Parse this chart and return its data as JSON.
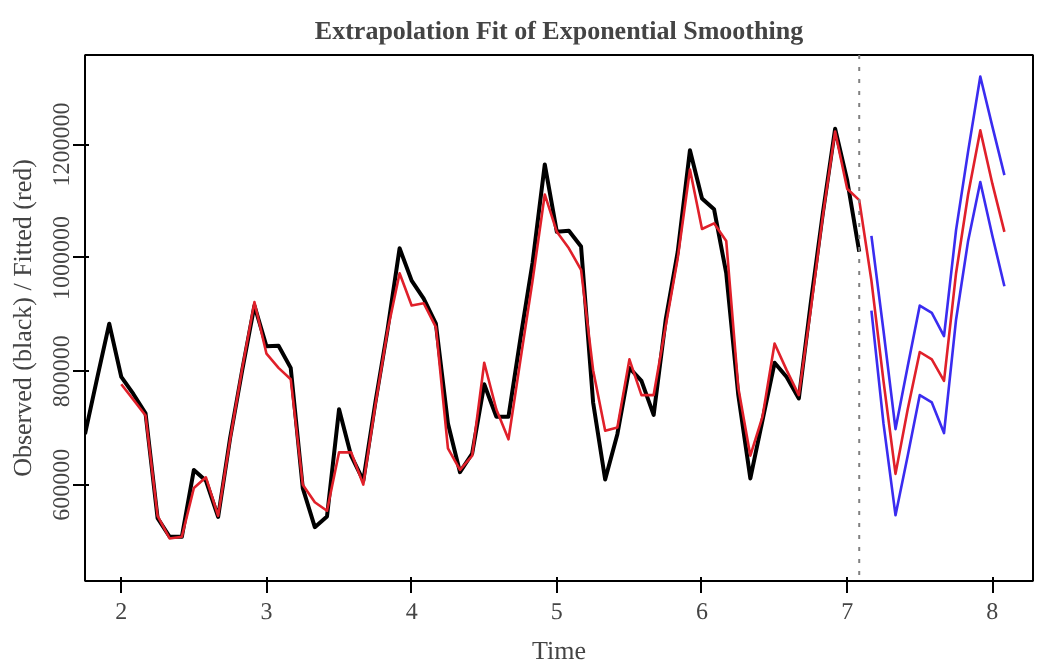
{
  "chart_data": {
    "type": "line",
    "title": "Extrapolation Fit of Exponential Smoothing",
    "xlabel": "Time",
    "ylabel": "Observed (black) / Fitted (red)",
    "xlim": [
      1.75,
      8.28
    ],
    "ylim": [
      430000,
      1358000
    ],
    "xticks": [
      2,
      3,
      4,
      5,
      6,
      7,
      8
    ],
    "yticks": [
      600000,
      800000,
      1000000,
      1200000
    ],
    "grid": false,
    "line_style": "solid",
    "marker": "none",
    "ref_lines": [
      {
        "axis": "x",
        "value": 7.083,
        "color": "#808080",
        "line_style": "dotted"
      }
    ],
    "series": [
      {
        "color": "#000000",
        "x": [
          1.75,
          1.833,
          1.917,
          2.0,
          2.083,
          2.167,
          2.25,
          2.333,
          2.417,
          2.5,
          2.583,
          2.667,
          2.75,
          2.833,
          2.917,
          3.0,
          3.083,
          3.167,
          3.25,
          3.333,
          3.417,
          3.5,
          3.583,
          3.667,
          3.75,
          3.833,
          3.917,
          4.0,
          4.083,
          4.167,
          4.25,
          4.333,
          4.417,
          4.5,
          4.583,
          4.667,
          4.75,
          4.833,
          4.917,
          5.0,
          5.083,
          5.167,
          5.25,
          5.333,
          5.417,
          5.5,
          5.583,
          5.667,
          5.75,
          5.833,
          5.917,
          6.0,
          6.083,
          6.167,
          6.25,
          6.333,
          6.417,
          6.5,
          6.583,
          6.667,
          6.75,
          6.833,
          6.917,
          7.0,
          7.083
        ],
        "values": [
          689000,
          787000,
          884000,
          790000,
          760000,
          726000,
          541000,
          508000,
          508000,
          626000,
          607000,
          543000,
          683000,
          802000,
          916000,
          844000,
          845000,
          806000,
          594000,
          525000,
          544000,
          733000,
          651000,
          607000,
          745000,
          872000,
          1017000,
          960000,
          928000,
          884000,
          708000,
          622000,
          655000,
          777000,
          720000,
          720000,
          859000,
          992000,
          1165000,
          1046000,
          1048000,
          1020000,
          745000,
          609000,
          689000,
          806000,
          783000,
          723000,
          891000,
          1011000,
          1190000,
          1105000,
          1086000,
          973000,
          758000,
          611000,
          714000,
          815000,
          790000,
          752000,
          922000,
          1080000,
          1228000,
          1137000,
          1011000
        ]
      },
      {
        "color": "#e0202a",
        "x": [
          2.0,
          2.083,
          2.167,
          2.25,
          2.333,
          2.417,
          2.5,
          2.583,
          2.667,
          2.75,
          2.833,
          2.917,
          3.0,
          3.083,
          3.167,
          3.25,
          3.333,
          3.417,
          3.5,
          3.583,
          3.667,
          3.75,
          3.833,
          3.917,
          4.0,
          4.083,
          4.167,
          4.25,
          4.333,
          4.417,
          4.5,
          4.583,
          4.667,
          4.75,
          4.833,
          4.917,
          5.0,
          5.083,
          5.167,
          5.25,
          5.333,
          5.417,
          5.5,
          5.583,
          5.667,
          5.75,
          5.833,
          5.917,
          6.0,
          6.083,
          6.167,
          6.25,
          6.333,
          6.417,
          6.5,
          6.583,
          6.667,
          6.75,
          6.833,
          6.917,
          7.0,
          7.083,
          7.167,
          7.25,
          7.333,
          7.417,
          7.5,
          7.583,
          7.667,
          7.75,
          7.833,
          7.917,
          8.0,
          8.083
        ],
        "values": [
          777000,
          750000,
          722000,
          545000,
          505000,
          508000,
          594000,
          613000,
          545000,
          680000,
          805000,
          922000,
          831000,
          806000,
          786000,
          600000,
          569000,
          554000,
          657000,
          657000,
          600000,
          740000,
          870000,
          973000,
          916000,
          920000,
          878000,
          664000,
          626000,
          651000,
          815000,
          733000,
          680000,
          821000,
          960000,
          1112000,
          1046000,
          1017000,
          979000,
          802000,
          695000,
          701000,
          821000,
          758000,
          758000,
          880000,
          1000000,
          1156000,
          1051000,
          1061000,
          1030000,
          771000,
          651000,
          720000,
          849000,
          802000,
          758000,
          910000,
          1075000,
          1223000,
          1122000,
          1102000,
          960000,
          783000,
          619000,
          733000,
          834000,
          821000,
          783000,
          973000,
          1112000,
          1225000,
          1131000,
          1046000
        ]
      },
      {
        "color": "#3a2cf0",
        "x": [
          7.167,
          7.25,
          7.333,
          7.417,
          7.5,
          7.583,
          7.667,
          7.75,
          7.833,
          7.917,
          8.0,
          8.083
        ],
        "values": [
          1039000,
          872000,
          698000,
          809000,
          916000,
          903000,
          862000,
          1049000,
          1188000,
          1320000,
          1232000,
          1146000
        ]
      },
      {
        "color": "#3a2cf0",
        "x": [
          7.167,
          7.25,
          7.333,
          7.417,
          7.5,
          7.583,
          7.667,
          7.75,
          7.833,
          7.917,
          8.0,
          8.083
        ],
        "values": [
          907000,
          708000,
          546000,
          651000,
          758000,
          745000,
          691000,
          891000,
          1030000,
          1134000,
          1039000,
          950000
        ]
      }
    ]
  }
}
